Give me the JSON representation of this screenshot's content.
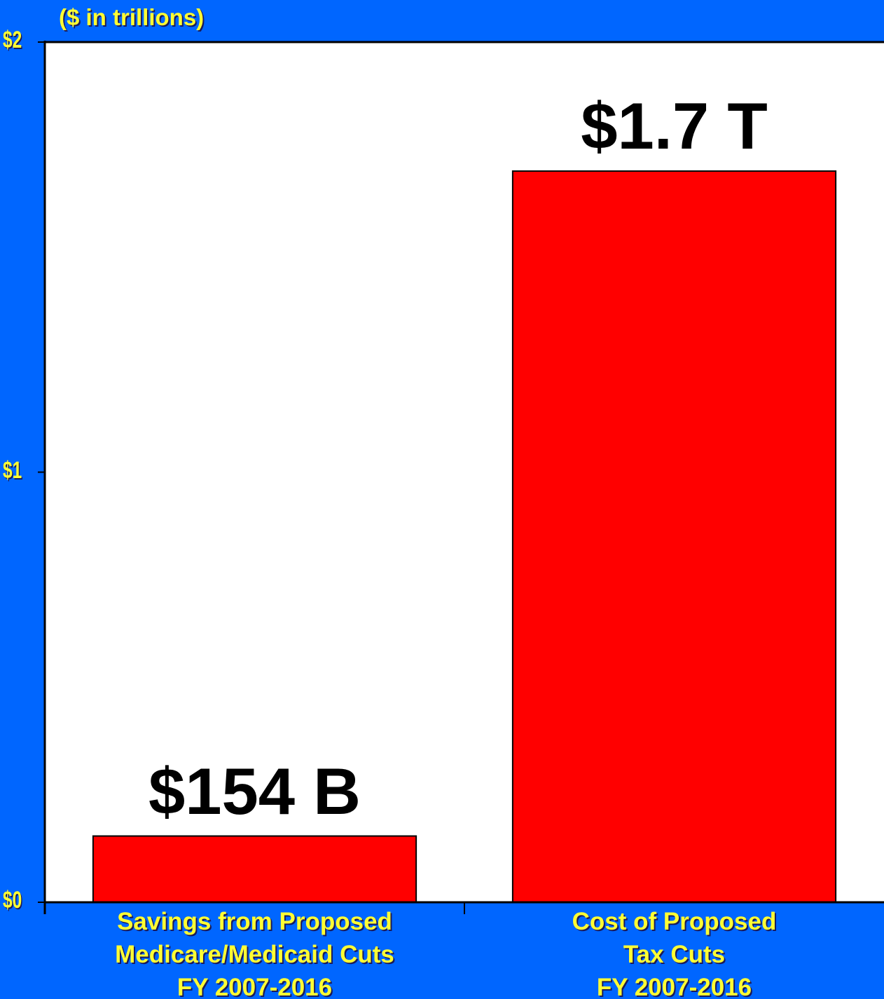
{
  "unit_label": "($ in trillions)",
  "chart_data": {
    "type": "bar",
    "categories": [
      [
        "Savings from Proposed",
        "Medicare/Medicaid Cuts",
        "FY 2007-2016"
      ],
      [
        "Cost of Proposed",
        "Tax Cuts",
        "FY 2007-2016"
      ]
    ],
    "values": [
      0.154,
      1.7
    ],
    "data_labels": [
      "$154 B",
      "$1.7 T"
    ],
    "y_ticks": [
      "$0",
      "$1",
      "$2"
    ],
    "ylim": [
      0,
      2
    ],
    "grid": false,
    "title": "",
    "xlabel": "",
    "ylabel": "",
    "colors": {
      "background": "#0066ff",
      "plot_area": "#ffffff",
      "bar": "#ff0000",
      "text": "#ffff33",
      "data_label": "#000000"
    }
  }
}
